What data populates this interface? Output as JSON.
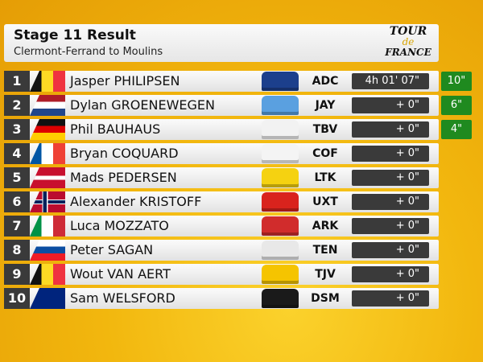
{
  "header": {
    "title": "Stage 11 Result",
    "subtitle": "Clermont-Ferrand to Moulins",
    "logo": [
      "TOUR",
      "de",
      "FRANCE"
    ]
  },
  "rows": [
    {
      "rank": "1",
      "name": "Jasper PHILIPSEN",
      "team": "ADC",
      "time": "4h 01' 07\"",
      "bonus": "10\""
    },
    {
      "rank": "2",
      "name": "Dylan GROENEWEGEN",
      "team": "JAY",
      "time": "+ 0\"",
      "bonus": "6\""
    },
    {
      "rank": "3",
      "name": "Phil BAUHAUS",
      "team": "TBV",
      "time": "+ 0\"",
      "bonus": "4\""
    },
    {
      "rank": "4",
      "name": "Bryan COQUARD",
      "team": "COF",
      "time": "+ 0\""
    },
    {
      "rank": "5",
      "name": "Mads PEDERSEN",
      "team": "LTK",
      "time": "+ 0\""
    },
    {
      "rank": "6",
      "name": "Alexander KRISTOFF",
      "team": "UXT",
      "time": "+ 0\""
    },
    {
      "rank": "7",
      "name": "Luca MOZZATO",
      "team": "ARK",
      "time": "+ 0\""
    },
    {
      "rank": "8",
      "name": "Peter SAGAN",
      "team": "TEN",
      "time": "+ 0\""
    },
    {
      "rank": "9",
      "name": "Wout VAN AERT",
      "team": "TJV",
      "time": "+ 0\""
    },
    {
      "rank": "10",
      "name": "Sam WELSFORD",
      "team": "DSM",
      "time": "+ 0\""
    }
  ]
}
